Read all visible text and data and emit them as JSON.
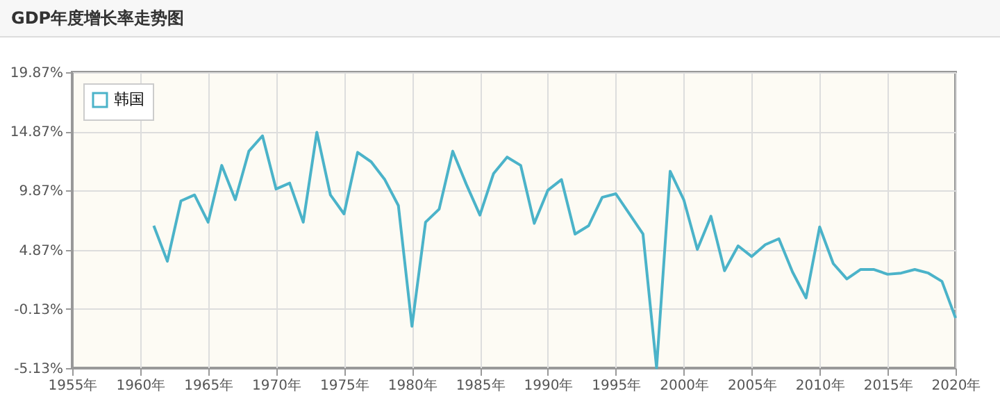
{
  "chart_data": {
    "type": "line",
    "title": "GDP年度增长率走势图",
    "x": [
      1961,
      1962,
      1963,
      1964,
      1965,
      1966,
      1967,
      1968,
      1969,
      1970,
      1971,
      1972,
      1973,
      1974,
      1975,
      1976,
      1977,
      1978,
      1979,
      1980,
      1981,
      1982,
      1983,
      1984,
      1985,
      1986,
      1987,
      1988,
      1989,
      1990,
      1991,
      1992,
      1993,
      1994,
      1995,
      1996,
      1997,
      1998,
      1999,
      2000,
      2001,
      2002,
      2003,
      2004,
      2005,
      2006,
      2007,
      2008,
      2009,
      2010,
      2011,
      2012,
      2013,
      2014,
      2015,
      2016,
      2017,
      2018,
      2019,
      2020
    ],
    "series": [
      {
        "name": "韩国",
        "color": "#4bb3c9",
        "values": [
          6.9,
          3.9,
          9.0,
          9.5,
          7.2,
          12.0,
          9.1,
          13.2,
          14.5,
          10.0,
          10.5,
          7.2,
          14.8,
          9.5,
          7.9,
          13.1,
          12.3,
          10.8,
          8.6,
          -1.6,
          7.2,
          8.3,
          13.2,
          10.4,
          7.8,
          11.3,
          12.7,
          12.0,
          7.1,
          9.9,
          10.8,
          6.2,
          6.9,
          9.3,
          9.6,
          7.9,
          6.2,
          -5.1,
          11.5,
          9.1,
          4.9,
          7.7,
          3.1,
          5.2,
          4.3,
          5.3,
          5.8,
          3.0,
          0.8,
          6.8,
          3.7,
          2.4,
          3.2,
          3.2,
          2.8,
          2.9,
          3.2,
          2.9,
          2.2,
          -0.9
        ]
      }
    ],
    "xlim": [
      1955,
      2020
    ],
    "xticks": [
      {
        "value": 1955,
        "label": "1955年"
      },
      {
        "value": 1960,
        "label": "1960年"
      },
      {
        "value": 1965,
        "label": "1965年"
      },
      {
        "value": 1970,
        "label": "1970年"
      },
      {
        "value": 1975,
        "label": "1975年"
      },
      {
        "value": 1980,
        "label": "1980年"
      },
      {
        "value": 1985,
        "label": "1985年"
      },
      {
        "value": 1990,
        "label": "1990年"
      },
      {
        "value": 1995,
        "label": "1995年"
      },
      {
        "value": 2000,
        "label": "2000年"
      },
      {
        "value": 2005,
        "label": "2005年"
      },
      {
        "value": 2010,
        "label": "2010年"
      },
      {
        "value": 2015,
        "label": "2015年"
      },
      {
        "value": 2020,
        "label": "2020年"
      }
    ],
    "ylim": [
      -5.13,
      19.87
    ],
    "yticks": [
      {
        "value": -5.13,
        "label": "-5.13%"
      },
      {
        "value": -0.13,
        "label": "-0.13%"
      },
      {
        "value": 4.87,
        "label": "4.87%"
      },
      {
        "value": 9.87,
        "label": "9.87%"
      },
      {
        "value": 14.87,
        "label": "14.87%"
      },
      {
        "value": 19.87,
        "label": "19.87%"
      }
    ],
    "grid": true,
    "legend": "top left",
    "marker": "none",
    "line_style": "solid"
  }
}
